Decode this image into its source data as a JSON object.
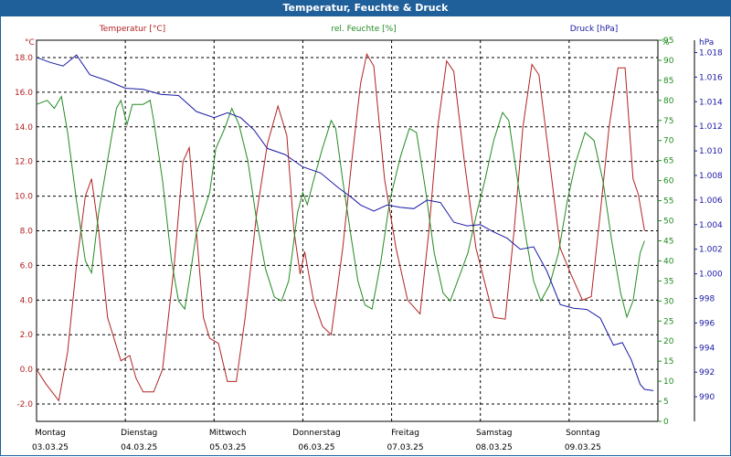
{
  "title": "Temperatur, Feuchte & Druck",
  "colors": {
    "temperature": "#b22222",
    "humidity": "#228b22",
    "pressure": "#1a1aa6",
    "titlebar": "#1f5f9a"
  },
  "chart_data": {
    "type": "line",
    "title": "Temperatur, Feuchte & Druck",
    "grid": true,
    "legend": "top",
    "days": [
      {
        "name": "Montag",
        "date": "03.03.25"
      },
      {
        "name": "Dienstag",
        "date": "04.03.25"
      },
      {
        "name": "Mittwoch",
        "date": "05.03.25"
      },
      {
        "name": "Donnerstag",
        "date": "06.03.25"
      },
      {
        "name": "Freitag",
        "date": "07.03.25"
      },
      {
        "name": "Samstag",
        "date": "08.03.25"
      },
      {
        "name": "Sonntag",
        "date": "09.03.25"
      }
    ],
    "xlim": [
      0,
      7
    ],
    "axes": {
      "temperature": {
        "label": "Temperatur [°C]",
        "unit": "°C",
        "range": [
          -3,
          19
        ],
        "ticks": [
          "-2.0",
          "0.0",
          "2.0",
          "4.0",
          "6.0",
          "8.0",
          "10.0",
          "12.0",
          "14.0",
          "16.0",
          "18.0"
        ]
      },
      "humidity": {
        "label": "rel. Feuchte [%]",
        "unit": "%",
        "range": [
          0,
          95
        ],
        "ticks": [
          "0",
          "5",
          "10",
          "15",
          "20",
          "25",
          "30",
          "35",
          "40",
          "45",
          "50",
          "55",
          "60",
          "65",
          "70",
          "75",
          "80",
          "85",
          "90",
          "95"
        ]
      },
      "pressure": {
        "label": "Druck [hPa]",
        "unit": "hPa",
        "range": [
          988,
          1019
        ],
        "ticks": [
          "990",
          "992",
          "994",
          "996",
          "998",
          "1.000",
          "1.002",
          "1.004",
          "1.006",
          "1.008",
          "1.010",
          "1.012",
          "1.014",
          "1.016",
          "1.018"
        ]
      }
    },
    "series": [
      {
        "name": "Temperatur [°C]",
        "axis": "temperature",
        "points": [
          [
            0,
            0
          ],
          [
            0.1,
            -0.8
          ],
          [
            0.25,
            -1.8
          ],
          [
            0.35,
            1
          ],
          [
            0.45,
            6
          ],
          [
            0.55,
            10
          ],
          [
            0.62,
            11
          ],
          [
            0.7,
            8
          ],
          [
            0.8,
            3
          ],
          [
            0.95,
            0.5
          ],
          [
            1.05,
            0.8
          ],
          [
            1.12,
            -0.5
          ],
          [
            1.2,
            -1.3
          ],
          [
            1.32,
            -1.3
          ],
          [
            1.42,
            0
          ],
          [
            1.55,
            6
          ],
          [
            1.65,
            12
          ],
          [
            1.72,
            12.8
          ],
          [
            1.8,
            8
          ],
          [
            1.88,
            3
          ],
          [
            1.95,
            1.8
          ],
          [
            2.05,
            1.5
          ],
          [
            2.15,
            -0.7
          ],
          [
            2.25,
            -0.7
          ],
          [
            2.35,
            3
          ],
          [
            2.48,
            9
          ],
          [
            2.6,
            13
          ],
          [
            2.72,
            15.2
          ],
          [
            2.82,
            13.5
          ],
          [
            2.9,
            8
          ],
          [
            2.97,
            5.5
          ],
          [
            3.02,
            6.8
          ],
          [
            3.12,
            4
          ],
          [
            3.22,
            2.5
          ],
          [
            3.32,
            2
          ],
          [
            3.45,
            7
          ],
          [
            3.55,
            12
          ],
          [
            3.65,
            16.5
          ],
          [
            3.72,
            18.2
          ],
          [
            3.8,
            17.5
          ],
          [
            3.92,
            11
          ],
          [
            4.05,
            7
          ],
          [
            4.18,
            4
          ],
          [
            4.32,
            3.2
          ],
          [
            4.42,
            8
          ],
          [
            4.52,
            14
          ],
          [
            4.62,
            17.8
          ],
          [
            4.7,
            17.2
          ],
          [
            4.82,
            12
          ],
          [
            4.95,
            7
          ],
          [
            5.05,
            5
          ],
          [
            5.15,
            3
          ],
          [
            5.28,
            2.9
          ],
          [
            5.38,
            8
          ],
          [
            5.48,
            14
          ],
          [
            5.58,
            17.6
          ],
          [
            5.66,
            17
          ],
          [
            5.78,
            12
          ],
          [
            5.9,
            7
          ],
          [
            6.02,
            5.5
          ],
          [
            6.15,
            4
          ],
          [
            6.25,
            4.2
          ],
          [
            6.35,
            9
          ],
          [
            6.45,
            14
          ],
          [
            6.55,
            17.4
          ],
          [
            6.63,
            17.4
          ],
          [
            6.72,
            11
          ],
          [
            6.78,
            10.1
          ],
          [
            6.85,
            8
          ]
        ]
      },
      {
        "name": "rel. Feuchte [%]",
        "axis": "humidity",
        "points": [
          [
            0,
            79
          ],
          [
            0.12,
            80
          ],
          [
            0.2,
            78
          ],
          [
            0.28,
            81
          ],
          [
            0.35,
            72
          ],
          [
            0.45,
            55
          ],
          [
            0.55,
            40
          ],
          [
            0.62,
            37
          ],
          [
            0.7,
            52
          ],
          [
            0.8,
            65
          ],
          [
            0.9,
            78
          ],
          [
            0.95,
            80
          ],
          [
            1.02,
            74
          ],
          [
            1.08,
            79
          ],
          [
            1.2,
            79
          ],
          [
            1.28,
            80
          ],
          [
            1.32,
            75
          ],
          [
            1.42,
            60
          ],
          [
            1.52,
            40
          ],
          [
            1.6,
            30
          ],
          [
            1.67,
            28
          ],
          [
            1.72,
            35
          ],
          [
            1.8,
            47
          ],
          [
            1.88,
            52
          ],
          [
            1.95,
            57
          ],
          [
            2.02,
            68
          ],
          [
            2.12,
            73
          ],
          [
            2.2,
            78
          ],
          [
            2.28,
            74
          ],
          [
            2.38,
            65
          ],
          [
            2.48,
            50
          ],
          [
            2.58,
            38
          ],
          [
            2.68,
            31
          ],
          [
            2.76,
            30
          ],
          [
            2.84,
            35
          ],
          [
            2.94,
            52
          ],
          [
            3.0,
            57
          ],
          [
            3.05,
            54
          ],
          [
            3.12,
            60
          ],
          [
            3.22,
            68
          ],
          [
            3.32,
            75
          ],
          [
            3.37,
            73
          ],
          [
            3.45,
            60
          ],
          [
            3.55,
            45
          ],
          [
            3.62,
            35
          ],
          [
            3.7,
            29
          ],
          [
            3.78,
            28
          ],
          [
            3.88,
            40
          ],
          [
            3.98,
            55
          ],
          [
            4.1,
            66
          ],
          [
            4.2,
            73
          ],
          [
            4.28,
            72
          ],
          [
            4.38,
            58
          ],
          [
            4.48,
            42
          ],
          [
            4.58,
            32
          ],
          [
            4.66,
            30
          ],
          [
            4.76,
            36
          ],
          [
            4.86,
            42
          ],
          [
            4.96,
            52
          ],
          [
            5.05,
            60
          ],
          [
            5.15,
            70
          ],
          [
            5.25,
            77
          ],
          [
            5.32,
            75
          ],
          [
            5.42,
            60
          ],
          [
            5.52,
            45
          ],
          [
            5.6,
            35
          ],
          [
            5.68,
            30
          ],
          [
            5.78,
            34
          ],
          [
            5.88,
            42
          ],
          [
            5.98,
            55
          ],
          [
            6.08,
            65
          ],
          [
            6.18,
            72
          ],
          [
            6.28,
            70
          ],
          [
            6.38,
            60
          ],
          [
            6.48,
            45
          ],
          [
            6.58,
            32
          ],
          [
            6.65,
            26
          ],
          [
            6.72,
            30
          ],
          [
            6.8,
            42
          ],
          [
            6.85,
            45
          ]
        ]
      },
      {
        "name": "Druck [hPa]",
        "axis": "pressure",
        "points": [
          [
            0,
            1017.6
          ],
          [
            0.15,
            1017.2
          ],
          [
            0.3,
            1016.9
          ],
          [
            0.45,
            1017.8
          ],
          [
            0.6,
            1016.2
          ],
          [
            0.8,
            1015.7
          ],
          [
            1.0,
            1015.1
          ],
          [
            1.2,
            1015.0
          ],
          [
            1.4,
            1014.6
          ],
          [
            1.6,
            1014.5
          ],
          [
            1.8,
            1013.2
          ],
          [
            2.0,
            1012.7
          ],
          [
            2.15,
            1013.1
          ],
          [
            2.3,
            1012.7
          ],
          [
            2.45,
            1011.7
          ],
          [
            2.6,
            1010.2
          ],
          [
            2.8,
            1009.7
          ],
          [
            3.0,
            1008.7
          ],
          [
            3.2,
            1008.2
          ],
          [
            3.4,
            1007.0
          ],
          [
            3.55,
            1006.2
          ],
          [
            3.65,
            1005.6
          ],
          [
            3.8,
            1005.1
          ],
          [
            3.95,
            1005.6
          ],
          [
            4.1,
            1005.4
          ],
          [
            4.25,
            1005.3
          ],
          [
            4.4,
            1006.0
          ],
          [
            4.55,
            1005.8
          ],
          [
            4.7,
            1004.2
          ],
          [
            4.85,
            1003.9
          ],
          [
            5.0,
            1004.0
          ],
          [
            5.15,
            1003.4
          ],
          [
            5.3,
            1002.9
          ],
          [
            5.45,
            1002.0
          ],
          [
            5.6,
            1002.2
          ],
          [
            5.75,
            1000.2
          ],
          [
            5.9,
            997.5
          ],
          [
            6.05,
            997.2
          ],
          [
            6.2,
            997.1
          ],
          [
            6.35,
            996.4
          ],
          [
            6.5,
            994.2
          ],
          [
            6.6,
            994.4
          ],
          [
            6.7,
            993.0
          ],
          [
            6.8,
            991.0
          ],
          [
            6.85,
            990.6
          ],
          [
            6.95,
            990.5
          ]
        ]
      }
    ]
  }
}
